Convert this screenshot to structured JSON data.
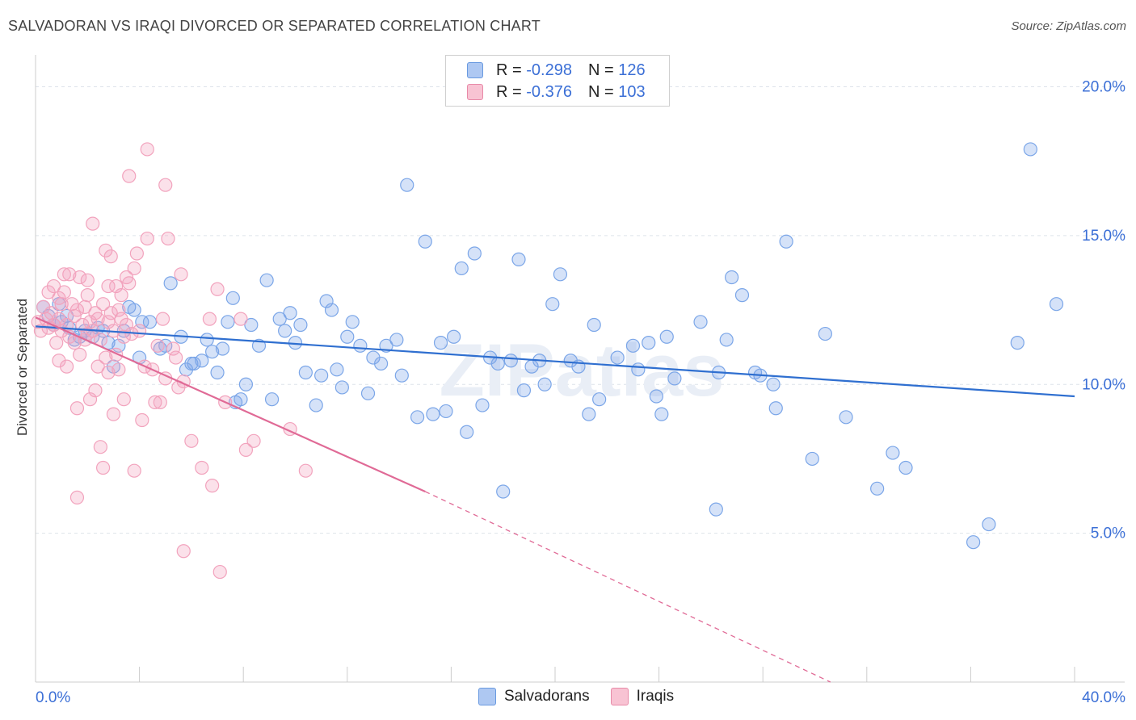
{
  "title": "SALVADORAN VS IRAQI DIVORCED OR SEPARATED CORRELATION CHART",
  "source": "Source: ZipAtlas.com",
  "watermark": "ZIPatlas",
  "legend": {
    "rows": [
      {
        "r_label": "R =",
        "r_value": "-0.298",
        "n_label": "N =",
        "n_value": "126",
        "color": "#aec8f2",
        "border": "#6a9ae0"
      },
      {
        "r_label": "R =",
        "r_value": "-0.376",
        "n_label": "N =",
        "n_value": "103",
        "color": "#f8c3d3",
        "border": "#e88aa8"
      }
    ]
  },
  "bottom_legend": [
    "Salvadorans",
    "Iraqis"
  ],
  "chart_data": {
    "type": "scatter",
    "ylabel": "Divorced or Separated",
    "x_tick_labels": [
      "0.0%",
      "40.0%"
    ],
    "y_tick_labels": [
      "5.0%",
      "10.0%",
      "15.0%",
      "20.0%"
    ],
    "xlim": [
      0,
      40
    ],
    "ylim": [
      0,
      20.8
    ],
    "y_ticks": [
      5,
      10,
      15,
      20
    ],
    "grid": true,
    "series": [
      {
        "name": "Salvadorans",
        "color": "#7ba6e8",
        "line_color": "#2f6fd0",
        "trend": {
          "x0": 0,
          "y0": 11.95,
          "x1": 40,
          "y1": 9.6
        },
        "points": [
          [
            0.3,
            12.6
          ],
          [
            0.5,
            12.3
          ],
          [
            0.7,
            12.0
          ],
          [
            0.9,
            12.7
          ],
          [
            1.0,
            12.1
          ],
          [
            1.2,
            12.3
          ],
          [
            1.3,
            11.9
          ],
          [
            1.5,
            11.5
          ],
          [
            1.7,
            11.6
          ],
          [
            1.9,
            11.8
          ],
          [
            2.2,
            11.6
          ],
          [
            2.4,
            11.9
          ],
          [
            2.6,
            11.8
          ],
          [
            2.8,
            11.4
          ],
          [
            3.0,
            10.6
          ],
          [
            3.2,
            11.3
          ],
          [
            3.4,
            11.8
          ],
          [
            3.6,
            12.6
          ],
          [
            3.8,
            12.5
          ],
          [
            4.0,
            10.9
          ],
          [
            4.1,
            12.1
          ],
          [
            4.4,
            12.1
          ],
          [
            4.8,
            11.2
          ],
          [
            5.0,
            11.3
          ],
          [
            5.2,
            13.4
          ],
          [
            5.6,
            11.6
          ],
          [
            5.8,
            10.5
          ],
          [
            6.0,
            10.7
          ],
          [
            6.1,
            10.7
          ],
          [
            6.4,
            10.8
          ],
          [
            6.6,
            11.5
          ],
          [
            6.8,
            11.1
          ],
          [
            7.0,
            10.4
          ],
          [
            7.2,
            11.2
          ],
          [
            7.4,
            12.1
          ],
          [
            7.6,
            12.9
          ],
          [
            7.7,
            9.4
          ],
          [
            7.9,
            9.5
          ],
          [
            8.1,
            10.0
          ],
          [
            8.3,
            12.0
          ],
          [
            8.6,
            11.3
          ],
          [
            8.9,
            13.5
          ],
          [
            9.1,
            9.5
          ],
          [
            9.4,
            12.2
          ],
          [
            9.6,
            11.8
          ],
          [
            9.8,
            12.4
          ],
          [
            10.0,
            11.4
          ],
          [
            10.2,
            12.0
          ],
          [
            10.4,
            10.4
          ],
          [
            10.8,
            9.3
          ],
          [
            11.0,
            10.3
          ],
          [
            11.2,
            12.8
          ],
          [
            11.4,
            12.5
          ],
          [
            11.6,
            10.5
          ],
          [
            11.8,
            9.9
          ],
          [
            12.0,
            11.6
          ],
          [
            12.2,
            12.1
          ],
          [
            12.5,
            11.3
          ],
          [
            12.8,
            9.7
          ],
          [
            13.0,
            10.9
          ],
          [
            13.3,
            10.7
          ],
          [
            13.5,
            11.3
          ],
          [
            13.9,
            11.5
          ],
          [
            14.1,
            10.3
          ],
          [
            14.3,
            16.7
          ],
          [
            14.7,
            8.9
          ],
          [
            15.0,
            14.8
          ],
          [
            15.3,
            9.0
          ],
          [
            15.6,
            11.4
          ],
          [
            15.8,
            9.1
          ],
          [
            16.1,
            11.6
          ],
          [
            16.4,
            13.9
          ],
          [
            16.6,
            8.4
          ],
          [
            16.9,
            14.4
          ],
          [
            17.2,
            9.3
          ],
          [
            17.5,
            10.9
          ],
          [
            17.8,
            10.7
          ],
          [
            18.0,
            6.4
          ],
          [
            18.3,
            10.8
          ],
          [
            18.6,
            14.2
          ],
          [
            18.8,
            9.8
          ],
          [
            19.1,
            10.6
          ],
          [
            19.4,
            10.8
          ],
          [
            19.6,
            10.0
          ],
          [
            19.9,
            12.7
          ],
          [
            20.2,
            13.7
          ],
          [
            20.6,
            10.8
          ],
          [
            20.9,
            10.6
          ],
          [
            21.3,
            9.0
          ],
          [
            21.5,
            12.0
          ],
          [
            21.7,
            9.5
          ],
          [
            22.4,
            10.9
          ],
          [
            23.0,
            11.3
          ],
          [
            23.2,
            10.5
          ],
          [
            23.6,
            11.4
          ],
          [
            23.9,
            9.6
          ],
          [
            24.1,
            9.0
          ],
          [
            24.3,
            11.6
          ],
          [
            24.6,
            10.2
          ],
          [
            25.6,
            12.1
          ],
          [
            26.2,
            5.8
          ],
          [
            26.3,
            10.4
          ],
          [
            26.6,
            11.5
          ],
          [
            26.8,
            13.6
          ],
          [
            27.2,
            13.0
          ],
          [
            27.7,
            10.4
          ],
          [
            27.9,
            10.3
          ],
          [
            28.4,
            10.0
          ],
          [
            28.5,
            9.2
          ],
          [
            28.9,
            14.8
          ],
          [
            29.9,
            7.5
          ],
          [
            30.4,
            11.7
          ],
          [
            31.2,
            8.9
          ],
          [
            32.4,
            6.5
          ],
          [
            33.0,
            7.7
          ],
          [
            33.5,
            7.2
          ],
          [
            36.1,
            4.7
          ],
          [
            36.7,
            5.3
          ],
          [
            37.8,
            11.4
          ],
          [
            38.3,
            17.9
          ],
          [
            39.3,
            12.7
          ]
        ]
      },
      {
        "name": "Iraqis",
        "color": "#f2a3bd",
        "line_color": "#e06a96",
        "trend": {
          "x0": 0,
          "y0": 12.25,
          "x1": 15.0,
          "y1": 6.4,
          "dash_x1": 30.6,
          "dash_y1": 0.0
        },
        "points": [
          [
            0.1,
            12.1
          ],
          [
            0.2,
            11.8
          ],
          [
            0.3,
            12.6
          ],
          [
            0.4,
            12.2
          ],
          [
            0.5,
            11.9
          ],
          [
            0.5,
            13.1
          ],
          [
            0.6,
            12.4
          ],
          [
            0.7,
            12.0
          ],
          [
            0.7,
            13.3
          ],
          [
            0.8,
            11.4
          ],
          [
            0.9,
            12.2
          ],
          [
            0.9,
            10.8
          ],
          [
            1.0,
            11.8
          ],
          [
            1.0,
            12.7
          ],
          [
            1.1,
            13.1
          ],
          [
            1.2,
            12.0
          ],
          [
            1.2,
            10.6
          ],
          [
            1.3,
            11.6
          ],
          [
            1.3,
            13.7
          ],
          [
            1.4,
            12.7
          ],
          [
            1.5,
            12.3
          ],
          [
            1.5,
            11.4
          ],
          [
            1.6,
            9.2
          ],
          [
            1.6,
            12.5
          ],
          [
            1.7,
            11.0
          ],
          [
            1.7,
            13.6
          ],
          [
            1.8,
            12.0
          ],
          [
            1.9,
            11.5
          ],
          [
            1.9,
            12.6
          ],
          [
            2.0,
            11.7
          ],
          [
            2.0,
            13.5
          ],
          [
            2.1,
            12.1
          ],
          [
            2.1,
            9.5
          ],
          [
            2.2,
            11.8
          ],
          [
            2.2,
            15.4
          ],
          [
            2.3,
            12.4
          ],
          [
            2.3,
            9.8
          ],
          [
            2.4,
            10.6
          ],
          [
            2.4,
            12.2
          ],
          [
            2.5,
            7.9
          ],
          [
            2.5,
            11.5
          ],
          [
            2.6,
            12.7
          ],
          [
            2.6,
            7.2
          ],
          [
            2.7,
            10.9
          ],
          [
            2.7,
            14.5
          ],
          [
            2.8,
            10.4
          ],
          [
            2.8,
            13.3
          ],
          [
            2.9,
            14.3
          ],
          [
            2.9,
            12.4
          ],
          [
            3.0,
            11.8
          ],
          [
            3.0,
            9.0
          ],
          [
            3.1,
            13.3
          ],
          [
            3.1,
            11.0
          ],
          [
            3.2,
            12.5
          ],
          [
            3.2,
            10.5
          ],
          [
            3.3,
            13.0
          ],
          [
            3.3,
            12.2
          ],
          [
            3.4,
            9.5
          ],
          [
            3.4,
            11.6
          ],
          [
            3.5,
            12.0
          ],
          [
            3.6,
            13.4
          ],
          [
            3.6,
            17.0
          ],
          [
            3.7,
            11.7
          ],
          [
            3.8,
            13.9
          ],
          [
            3.8,
            7.1
          ],
          [
            3.9,
            14.4
          ],
          [
            4.0,
            11.8
          ],
          [
            4.1,
            8.8
          ],
          [
            4.2,
            10.6
          ],
          [
            4.3,
            14.9
          ],
          [
            4.3,
            17.9
          ],
          [
            4.5,
            10.5
          ],
          [
            4.6,
            9.4
          ],
          [
            4.7,
            11.3
          ],
          [
            4.8,
            9.4
          ],
          [
            4.9,
            12.2
          ],
          [
            5.0,
            10.2
          ],
          [
            5.0,
            16.7
          ],
          [
            5.1,
            14.9
          ],
          [
            5.3,
            11.2
          ],
          [
            5.4,
            10.9
          ],
          [
            5.5,
            9.9
          ],
          [
            5.6,
            13.7
          ],
          [
            5.7,
            10.1
          ],
          [
            6.0,
            8.1
          ],
          [
            6.4,
            7.2
          ],
          [
            6.7,
            12.2
          ],
          [
            6.8,
            6.6
          ],
          [
            7.0,
            13.2
          ],
          [
            7.1,
            3.7
          ],
          [
            7.3,
            9.4
          ],
          [
            7.9,
            12.2
          ],
          [
            8.1,
            7.8
          ],
          [
            8.4,
            8.1
          ],
          [
            9.8,
            8.5
          ],
          [
            10.4,
            7.1
          ],
          [
            5.7,
            4.4
          ],
          [
            1.6,
            6.2
          ],
          [
            2.8,
            12.1
          ],
          [
            3.5,
            13.6
          ],
          [
            1.1,
            13.7
          ],
          [
            0.9,
            12.9
          ],
          [
            2.0,
            13.0
          ]
        ]
      }
    ]
  }
}
